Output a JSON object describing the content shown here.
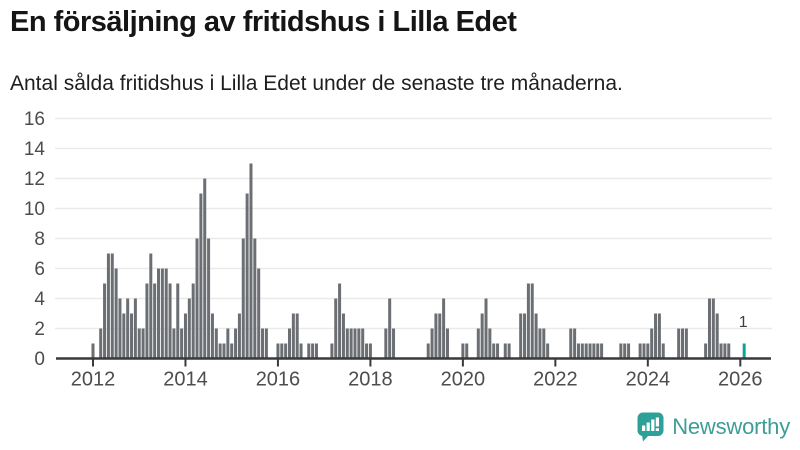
{
  "title": "En försäljning av fritidshus i Lilla Edet",
  "subtitle": "Antal sålda fritidshus i Lilla Edet under de senaste tre månaderna.",
  "logo": {
    "text": "Newsworthy",
    "text_color": "#3e9d96",
    "icon_color": "#2da199"
  },
  "chart_data": {
    "type": "bar",
    "title": "En försäljning av fritidshus i Lilla Edet",
    "subtitle": "Antal sålda fritidshus i Lilla Edet under de senaste tre månaderna.",
    "xlabel": "",
    "ylabel": "",
    "ylim": [
      0,
      16
    ],
    "yticks": [
      0,
      2,
      4,
      6,
      8,
      10,
      12,
      14,
      16
    ],
    "xticks": [
      "2012",
      "2014",
      "2016",
      "2018",
      "2020",
      "2022",
      "2024",
      "2026"
    ],
    "grid": true,
    "legend": "none",
    "start_year": 2012,
    "frequency": "monthly",
    "values": [
      1,
      0,
      2,
      5,
      7,
      7,
      6,
      4,
      3,
      4,
      3,
      4,
      2,
      2,
      5,
      7,
      5,
      6,
      6,
      6,
      5,
      2,
      5,
      2,
      3,
      4,
      5,
      8,
      11,
      12,
      8,
      3,
      2,
      1,
      1,
      2,
      1,
      2,
      3,
      8,
      11,
      13,
      8,
      6,
      2,
      2,
      0,
      0,
      1,
      1,
      1,
      2,
      3,
      3,
      1,
      0,
      1,
      1,
      1,
      0,
      0,
      0,
      1,
      4,
      5,
      3,
      2,
      2,
      2,
      2,
      2,
      1,
      1,
      0,
      0,
      0,
      2,
      4,
      2,
      0,
      0,
      0,
      0,
      0,
      0,
      0,
      0,
      1,
      2,
      3,
      3,
      4,
      2,
      0,
      0,
      0,
      1,
      1,
      0,
      0,
      2,
      3,
      4,
      2,
      1,
      1,
      0,
      1,
      1,
      0,
      0,
      3,
      3,
      5,
      5,
      3,
      2,
      2,
      1,
      0,
      0,
      0,
      0,
      0,
      2,
      2,
      1,
      1,
      1,
      1,
      1,
      1,
      1,
      0,
      0,
      0,
      0,
      1,
      1,
      1,
      0,
      0,
      1,
      1,
      1,
      2,
      3,
      3,
      1,
      0,
      0,
      0,
      2,
      2,
      2,
      0,
      0,
      0,
      0,
      1,
      4,
      4,
      3,
      1,
      1,
      1,
      0,
      0,
      0,
      1
    ],
    "bar_color": "#6b6e73",
    "highlight": {
      "index": 169,
      "value": 1,
      "label": "1",
      "color": "#12a19a"
    },
    "axis_color": "#3a3a3a",
    "grid_color": "#eaeaea",
    "tick_label_color": "#4d4d4d",
    "annotation_color": "#3d3d3d"
  }
}
